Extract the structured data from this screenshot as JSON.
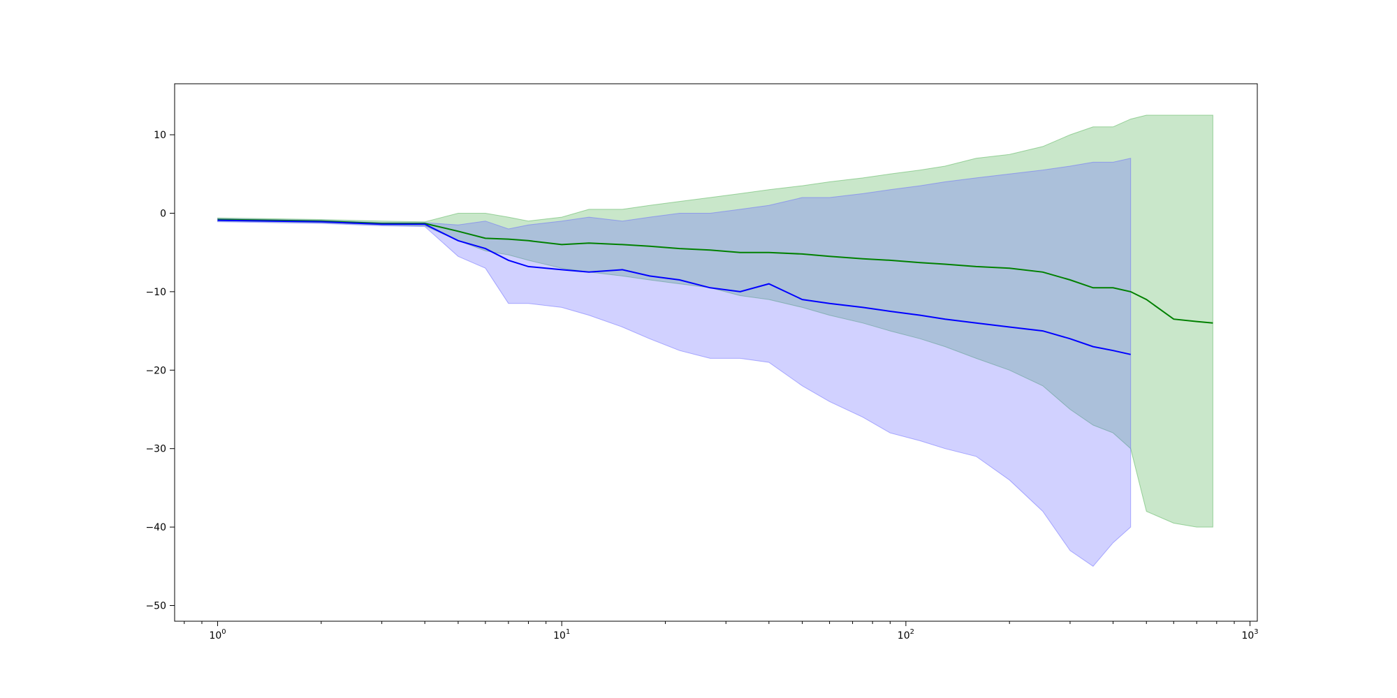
{
  "chart_data": {
    "type": "line",
    "title": "",
    "xlabel": "",
    "ylabel": "",
    "xscale": "log",
    "xlim": [
      0.75,
      1050
    ],
    "ylim": [
      -52,
      16.5
    ],
    "grid": false,
    "legend": "none",
    "x_ticks": [
      {
        "value": 1,
        "base": "10",
        "exp": "0"
      },
      {
        "value": 10,
        "base": "10",
        "exp": "1"
      },
      {
        "value": 100,
        "base": "10",
        "exp": "2"
      },
      {
        "value": 1000,
        "base": "10",
        "exp": "3"
      }
    ],
    "y_ticks": [
      {
        "value": 10,
        "label": "10"
      },
      {
        "value": 0,
        "label": "0"
      },
      {
        "value": -10,
        "label": "−10"
      },
      {
        "value": -20,
        "label": "−20"
      },
      {
        "value": -30,
        "label": "−30"
      },
      {
        "value": -40,
        "label": "−40"
      },
      {
        "value": -50,
        "label": "−50"
      }
    ],
    "series": [
      {
        "color": "#008000",
        "band_color": "#4caf50",
        "x": [
          1,
          2,
          3,
          4,
          5,
          6,
          7,
          8,
          10,
          12,
          15,
          18,
          22,
          27,
          33,
          40,
          50,
          60,
          75,
          90,
          110,
          130,
          160,
          200,
          250,
          300,
          350,
          400,
          450,
          500,
          600,
          700,
          780
        ],
        "mean": [
          -0.8,
          -1.0,
          -1.3,
          -1.3,
          -2.3,
          -3.2,
          -3.3,
          -3.5,
          -4.0,
          -3.8,
          -4.0,
          -4.2,
          -4.5,
          -4.7,
          -5.0,
          -5.0,
          -5.2,
          -5.5,
          -5.8,
          -6.0,
          -6.3,
          -6.5,
          -6.8,
          -7.0,
          -7.5,
          -8.5,
          -9.5,
          -9.5,
          -10.0,
          -11.0,
          -13.5,
          -13.8,
          -14.0
        ],
        "upper": [
          -0.6,
          -0.8,
          -1.0,
          -1.1,
          0.0,
          0.0,
          -0.5,
          -1.0,
          -0.5,
          0.5,
          0.5,
          1.0,
          1.5,
          2.0,
          2.5,
          3.0,
          3.5,
          4.0,
          4.5,
          5.0,
          5.5,
          6.0,
          7.0,
          7.5,
          8.5,
          10.0,
          11.0,
          11.0,
          12.0,
          12.5,
          12.5,
          12.5,
          12.5
        ],
        "lower": [
          -1.0,
          -1.2,
          -1.5,
          -1.6,
          -3.5,
          -4.8,
          -5.3,
          -6.0,
          -7.0,
          -7.5,
          -8.0,
          -8.5,
          -9.0,
          -9.5,
          -10.5,
          -11.0,
          -12.0,
          -13.0,
          -14.0,
          -15.0,
          -16.0,
          -17.0,
          -18.5,
          -20.0,
          -22.0,
          -25.0,
          -27.0,
          -28.0,
          -30.0,
          -38.0,
          -39.5,
          -40.0,
          -40.0
        ]
      },
      {
        "color": "#0000ff",
        "band_color": "#6666ff",
        "x": [
          1,
          2,
          3,
          4,
          5,
          6,
          7,
          8,
          10,
          12,
          15,
          18,
          22,
          27,
          33,
          40,
          50,
          60,
          75,
          90,
          110,
          130,
          160,
          200,
          250,
          300,
          350,
          400,
          450
        ],
        "mean": [
          -0.9,
          -1.1,
          -1.4,
          -1.4,
          -3.5,
          -4.5,
          -6.0,
          -6.8,
          -7.2,
          -7.5,
          -7.2,
          -8.0,
          -8.5,
          -9.5,
          -10.0,
          -9.0,
          -11.0,
          -11.5,
          -12.0,
          -12.5,
          -13.0,
          -13.5,
          -14.0,
          -14.5,
          -15.0,
          -16.0,
          -17.0,
          -17.5,
          -18.0
        ],
        "upper": [
          -0.7,
          -0.9,
          -1.2,
          -1.2,
          -1.5,
          -1.0,
          -2.0,
          -1.5,
          -1.0,
          -0.5,
          -1.0,
          -0.5,
          0.0,
          0.0,
          0.5,
          1.0,
          2.0,
          2.0,
          2.5,
          3.0,
          3.5,
          4.0,
          4.5,
          5.0,
          5.5,
          6.0,
          6.5,
          6.5,
          7.0
        ],
        "lower": [
          -1.1,
          -1.3,
          -1.6,
          -1.7,
          -5.5,
          -7.0,
          -11.5,
          -11.5,
          -12.0,
          -13.0,
          -14.5,
          -16.0,
          -17.5,
          -18.5,
          -18.5,
          -19.0,
          -22.0,
          -24.0,
          -26.0,
          -28.0,
          -29.0,
          -30.0,
          -31.0,
          -34.0,
          -38.0,
          -43.0,
          -45.0,
          -42.0,
          -40.0
        ]
      }
    ]
  }
}
